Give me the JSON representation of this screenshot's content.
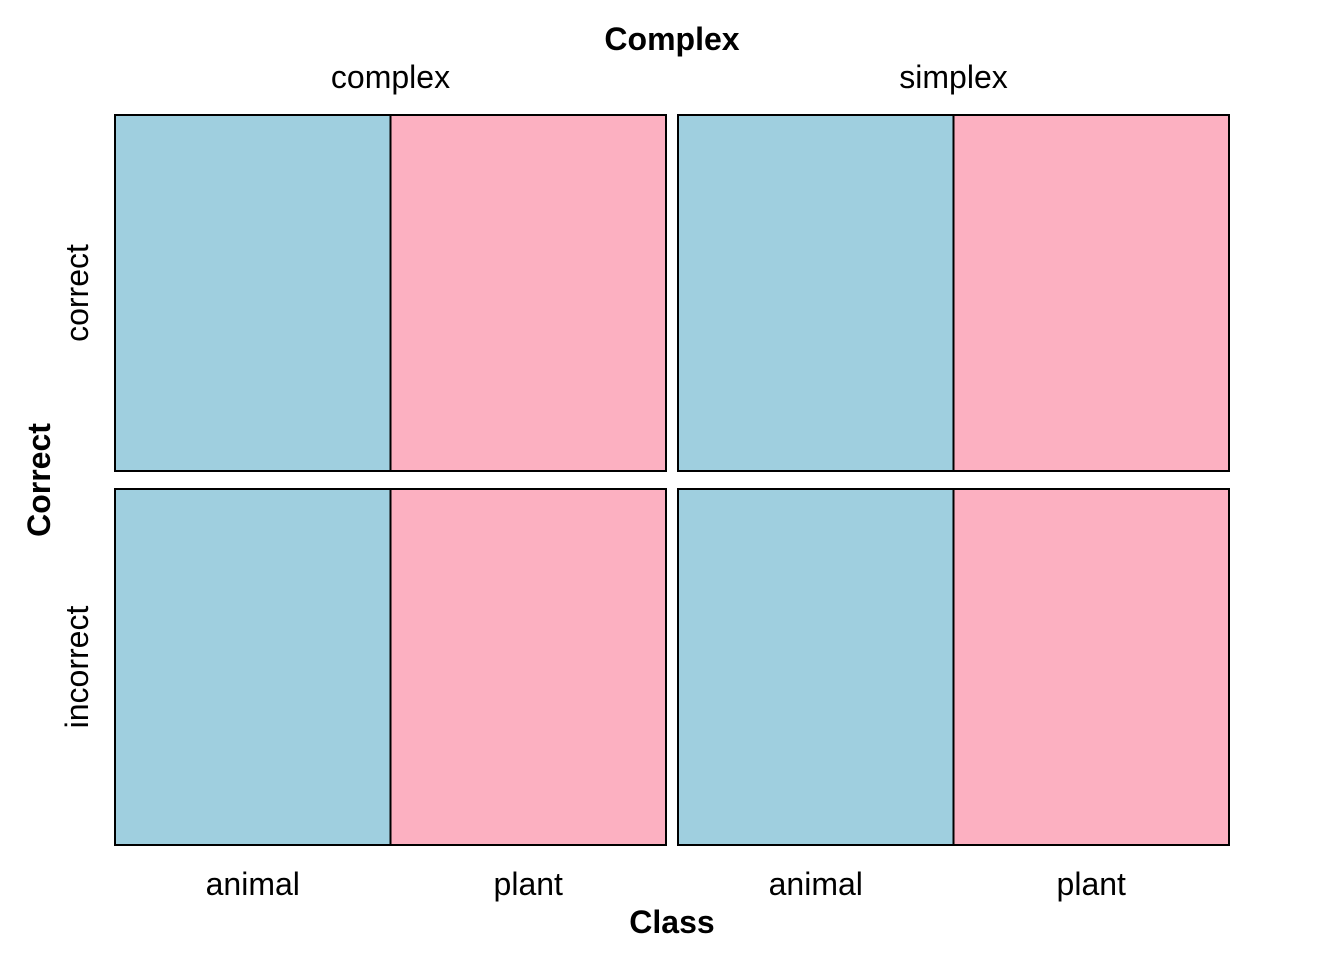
{
  "chart_data": {
    "type": "mosaic",
    "title": "Complex",
    "xlabel": "Class",
    "ylabel": "Correct",
    "column_variable": "Complex",
    "column_levels": [
      "complex",
      "simplex"
    ],
    "row_variable": "Correct",
    "row_levels": [
      "correct",
      "incorrect"
    ],
    "fill_variable": "Class",
    "fill_levels": [
      "animal",
      "plant"
    ],
    "colors": {
      "animal": "#9fcfdf",
      "plant": "#fcb0c1",
      "border": "#000000"
    },
    "cells": [
      {
        "complex": "complex",
        "correct": "correct",
        "animal": 0.5,
        "plant": 0.5
      },
      {
        "complex": "complex",
        "correct": "incorrect",
        "animal": 0.5,
        "plant": 0.5
      },
      {
        "complex": "simplex",
        "correct": "correct",
        "animal": 0.5,
        "plant": 0.5
      },
      {
        "complex": "simplex",
        "correct": "incorrect",
        "animal": 0.5,
        "plant": 0.5
      }
    ],
    "column_shares": [
      0.5,
      0.5
    ],
    "row_shares": [
      0.5,
      0.5
    ],
    "x_tick_labels": [
      "animal",
      "plant",
      "animal",
      "plant"
    ]
  }
}
